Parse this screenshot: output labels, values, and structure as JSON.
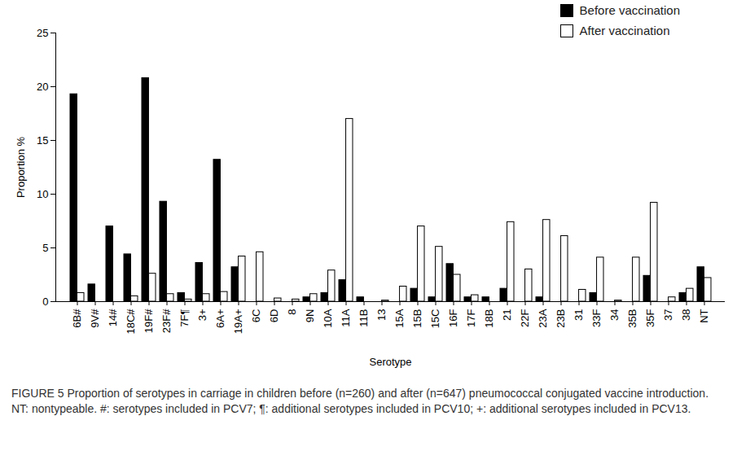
{
  "chart_data": {
    "type": "bar",
    "x_label": "Serotype",
    "y_label": "Proportion %",
    "caption": "FIGURE 5 Proportion of serotypes in carriage in children before (n=260) and after (n=647) pneumococcal conjugated vaccine introduction. NT: nontypeable. #: serotypes included in PCV7; ¶: additional serotypes included in PCV10; +: additional serotypes included in PCV13.",
    "categories": [
      "6B#",
      "9V#",
      "14#",
      "18C#",
      "19F#",
      "23F#",
      "7F¶",
      "3+",
      "6A+",
      "19A+",
      "6C",
      "6D",
      "8",
      "9N",
      "10A",
      "11A",
      "11B",
      "13",
      "15A",
      "15B",
      "15C",
      "16F",
      "17F",
      "18B",
      "21",
      "22F",
      "23A",
      "23B",
      "31",
      "33F",
      "34",
      "35B",
      "35F",
      "37",
      "38",
      "NT"
    ],
    "series": [
      {
        "name": "Before vaccination",
        "color": "#000000",
        "values": [
          19.3,
          1.6,
          7.0,
          4.4,
          20.8,
          9.3,
          0.8,
          3.6,
          13.2,
          3.2,
          0,
          0,
          0,
          0.4,
          0.8,
          2.0,
          0.4,
          0,
          0,
          1.2,
          0.4,
          3.5,
          0.4,
          0.4,
          1.2,
          0,
          0.4,
          0,
          0,
          0.8,
          0,
          0,
          2.4,
          0,
          0.8,
          3.2
        ]
      },
      {
        "name": "After vaccination",
        "color": "#ffffff",
        "values": [
          0.8,
          0,
          0,
          0.5,
          2.6,
          0.7,
          0.2,
          0.7,
          0.9,
          4.2,
          4.6,
          0.3,
          0.2,
          0.7,
          2.9,
          17.0,
          0,
          0.1,
          1.4,
          7.0,
          5.1,
          2.5,
          0.6,
          0,
          7.4,
          3.0,
          7.6,
          6.1,
          1.1,
          4.1,
          0.1,
          4.1,
          9.2,
          0.4,
          1.2,
          2.2
        ]
      }
    ],
    "ylim": [
      0,
      25
    ],
    "yticks": [
      0,
      5,
      10,
      15,
      20,
      25
    ],
    "grid": false,
    "legend": "top-right"
  }
}
